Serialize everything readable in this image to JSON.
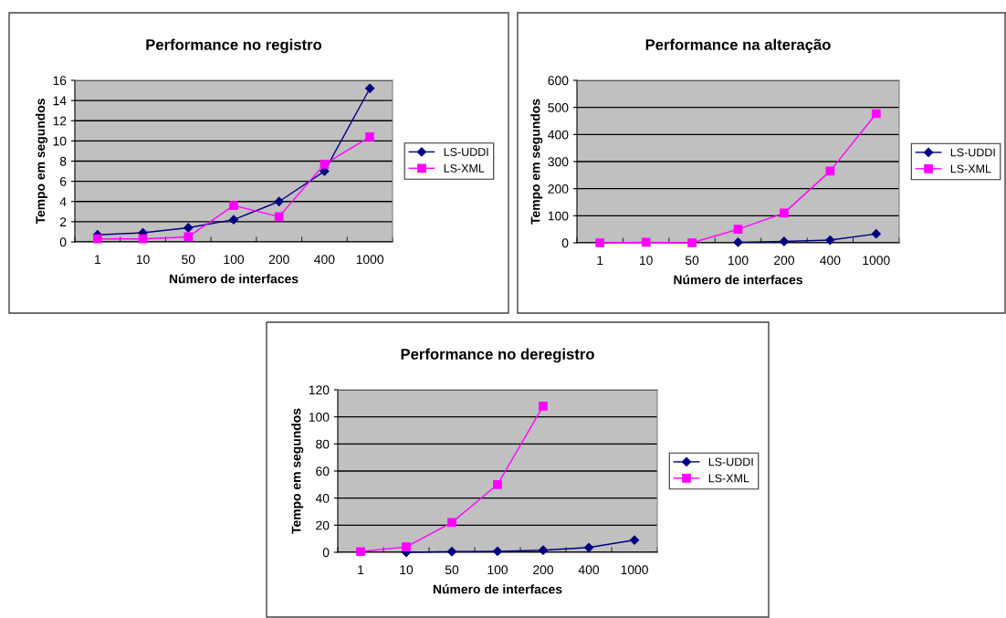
{
  "chart_data": [
    {
      "type": "line",
      "title": "Performance no registro",
      "xlabel": "Número de interfaces",
      "ylabel": "Tempo em segundos",
      "categories": [
        "1",
        "10",
        "50",
        "100",
        "200",
        "400",
        "1000"
      ],
      "ylim": [
        0,
        16
      ],
      "yticks": [
        0,
        2,
        4,
        6,
        8,
        10,
        12,
        14,
        16
      ],
      "grid": "y",
      "legend": "right",
      "series": [
        {
          "name": "LS-UDDI",
          "color": "#000080",
          "marker": "diamond",
          "values": [
            0.7,
            0.9,
            1.4,
            2.2,
            4.0,
            7.0,
            15.2
          ]
        },
        {
          "name": "LS-XML",
          "color": "#ff00ff",
          "marker": "square",
          "values": [
            0.3,
            0.3,
            0.5,
            3.6,
            2.5,
            7.7,
            10.4
          ]
        }
      ]
    },
    {
      "type": "line",
      "title": "Performance na alteração",
      "xlabel": "Número de interfaces",
      "ylabel": "Tempo em segundos",
      "categories": [
        "1",
        "10",
        "50",
        "100",
        "200",
        "400",
        "1000"
      ],
      "ylim": [
        0,
        600
      ],
      "yticks": [
        0,
        100,
        200,
        300,
        400,
        500,
        600
      ],
      "grid": "y",
      "legend": "right",
      "series": [
        {
          "name": "LS-UDDI",
          "color": "#000080",
          "marker": "diamond",
          "values": [
            null,
            null,
            null,
            2,
            5,
            10,
            33
          ]
        },
        {
          "name": "LS-XML",
          "color": "#ff00ff",
          "marker": "square",
          "values": [
            0,
            2,
            0,
            50,
            110,
            265,
            477
          ]
        }
      ]
    },
    {
      "type": "line",
      "title": "Performance no deregistro",
      "xlabel": "Número de interfaces",
      "ylabel": "Tempo em segundos",
      "categories": [
        "1",
        "10",
        "50",
        "100",
        "200",
        "400",
        "1000"
      ],
      "ylim": [
        0,
        120
      ],
      "yticks": [
        0,
        20,
        40,
        60,
        80,
        100,
        120
      ],
      "grid": "y",
      "legend": "right",
      "series": [
        {
          "name": "LS-UDDI",
          "color": "#000080",
          "marker": "diamond",
          "values": [
            null,
            0,
            0.5,
            0.7,
            1.5,
            3.5,
            9
          ]
        },
        {
          "name": "LS-XML",
          "color": "#ff00ff",
          "marker": "square",
          "values": [
            0.5,
            4,
            22,
            50,
            108,
            null,
            null
          ]
        }
      ]
    }
  ]
}
